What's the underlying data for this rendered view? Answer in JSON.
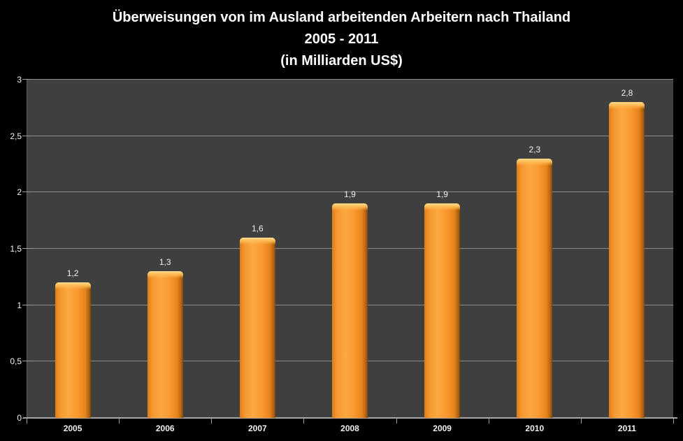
{
  "title": {
    "line1": "Überweisungen von im Ausland arbeitenden Arbeitern nach Thailand",
    "line2": "2005 - 2011",
    "line3": "(in Milliarden US$)"
  },
  "chart_data": {
    "type": "bar",
    "title": "Überweisungen von im Ausland arbeitenden Arbeitern nach Thailand 2005 - 2011 (in Milliarden US$)",
    "categories": [
      "2005",
      "2006",
      "2007",
      "2008",
      "2009",
      "2010",
      "2011"
    ],
    "values": [
      1.2,
      1.3,
      1.6,
      1.9,
      1.9,
      2.3,
      2.8
    ],
    "data_labels": [
      "1,2",
      "1,3",
      "1,6",
      "1,9",
      "1,9",
      "2,3",
      "2,8"
    ],
    "xlabel": "",
    "ylabel": "",
    "ylim": [
      0,
      3
    ],
    "ytick_step": 0.5,
    "ytick_labels": [
      "0",
      "0,5",
      "1",
      "1,5",
      "2",
      "2,5",
      "3"
    ],
    "grid": true,
    "legend_position": "none"
  },
  "colors": {
    "page_background": "#000000",
    "plot_background": "#3F3F3F",
    "gridline": "#8C8C8C",
    "x_axis_line": "#A6A6A6",
    "y_axis_line": "#5E5E5E",
    "bar_fill_main": "#F79A33",
    "bar_fill_light": "#FCA843",
    "bar_fill_dark_edge": "#7E4309",
    "bar_top_highlight": "#FFDA8F",
    "label_text": "#F2F2F2",
    "title_text": "#FFFFFF"
  }
}
